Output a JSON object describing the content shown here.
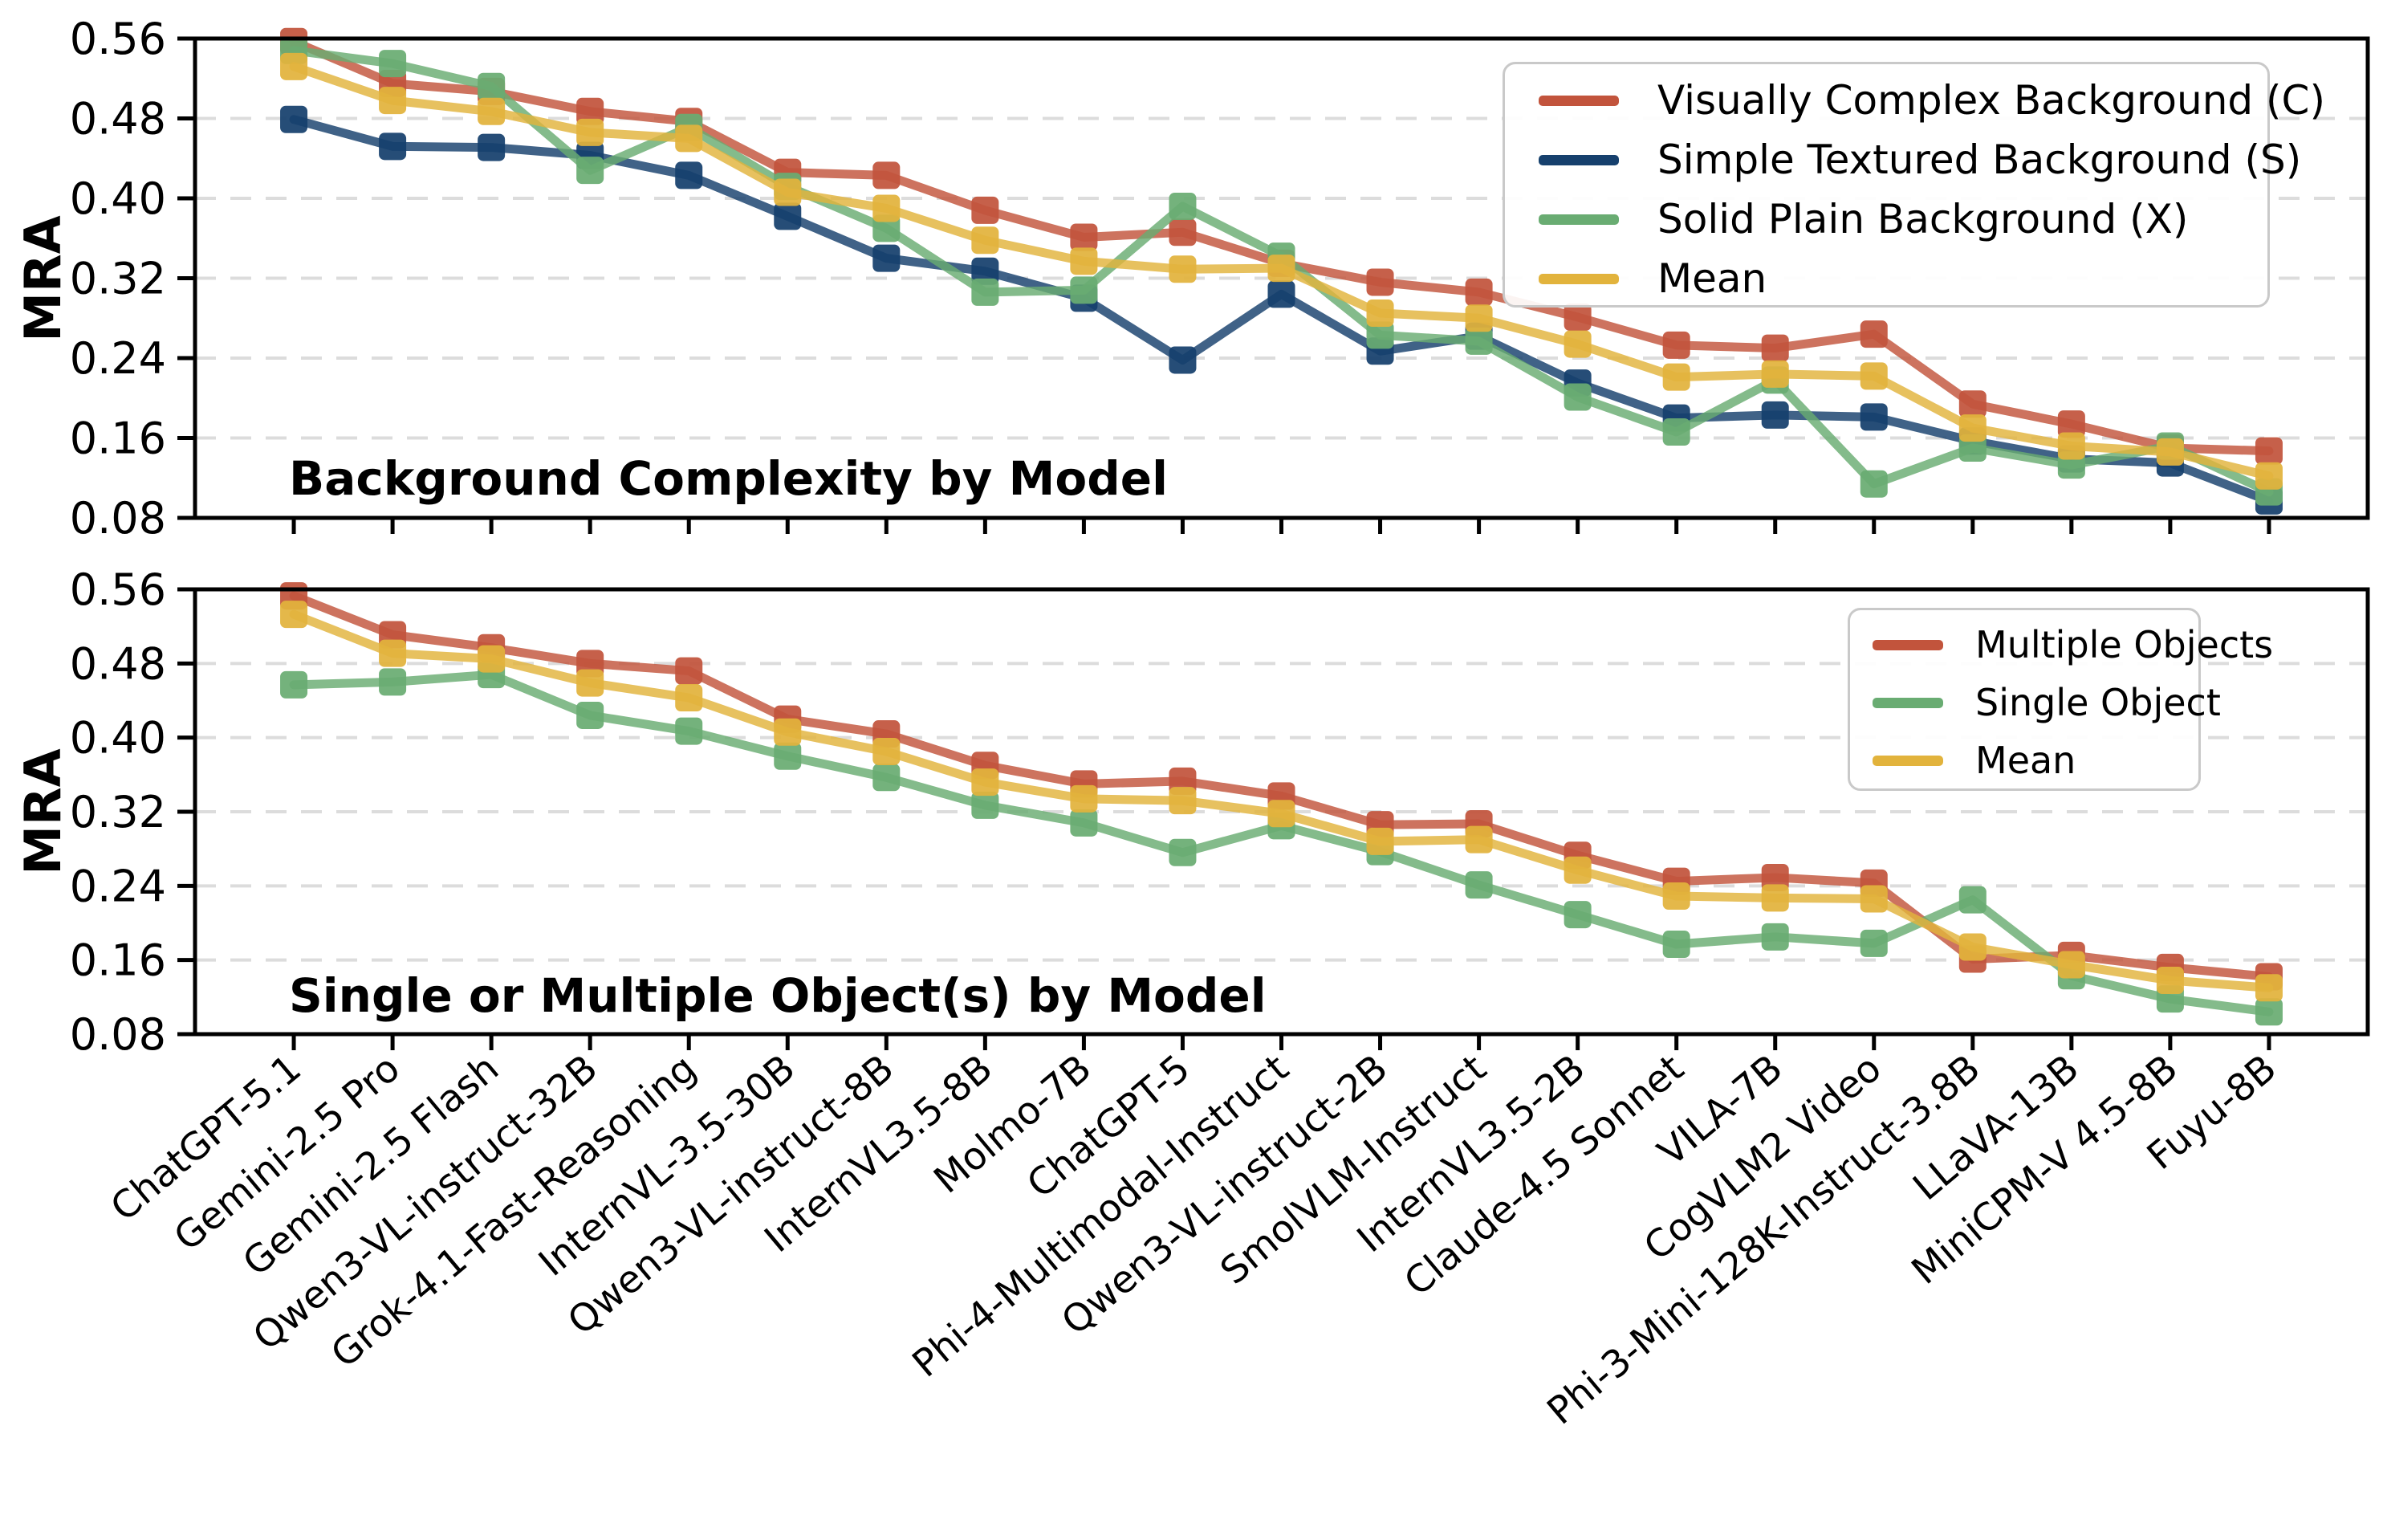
{
  "figure": {
    "background": "#ffffff",
    "text_color": "#000000",
    "grid_color": "#dcdcdc",
    "spine_color": "#000000"
  },
  "chart_data": [
    {
      "type": "line",
      "title": "Background Complexity by Model",
      "ylabel": "MRA",
      "xlabel": "",
      "ylim": [
        0.08,
        0.56
      ],
      "ytick_labels": [
        "0.56",
        "0.48",
        "0.40",
        "0.32",
        "0.24",
        "0.16",
        "0.08"
      ],
      "ytick_values": [
        0.56,
        0.48,
        0.4,
        0.32,
        0.24,
        0.16,
        0.08
      ],
      "grid": "horizontal-dashed",
      "marker": "square",
      "legend_position": "upper right",
      "show_x_tick_labels": false,
      "categories": [
        "ChatGPT-5.1",
        "Gemini-2.5 Pro",
        "Gemini-2.5 Flash",
        "Qwen3-VL-instruct-32B",
        "Grok-4.1-Fast-Reasoning",
        "InternVL-3.5-30B",
        "Qwen3-VL-instruct-8B",
        "InternVL3.5-8B",
        "Molmo-7B",
        "ChatGPT-5",
        "Phi-4-Multimodal-Instruct",
        "Qwen3-VL-instruct-2B",
        "SmolVLM-Instruct",
        "InternVL3.5-2B",
        "Claude-4.5 Sonnet",
        "VILA-7B",
        "CogVLM2 Video",
        "Phi-3-Mini-128K-Instruct-3.8B",
        "LLaVA-13B",
        "MiniCPM-V 4.5-8B",
        "Fuyu-8B"
      ],
      "series": [
        {
          "name": "Visually Complex Background (C)",
          "color": "#c2543c",
          "values": [
            0.557,
            0.515,
            0.507,
            0.487,
            0.477,
            0.426,
            0.423,
            0.388,
            0.361,
            0.366,
            0.335,
            0.316,
            0.306,
            0.281,
            0.253,
            0.25,
            0.264,
            0.194,
            0.174,
            0.15,
            0.147
          ]
        },
        {
          "name": "Simple Textured Background (S)",
          "color": "#16406d",
          "values": [
            0.479,
            0.452,
            0.451,
            0.443,
            0.423,
            0.382,
            0.34,
            0.327,
            0.3,
            0.238,
            0.304,
            0.247,
            0.262,
            0.215,
            0.18,
            0.183,
            0.181,
            0.157,
            0.139,
            0.135,
            0.097
          ]
        },
        {
          "name": "Solid Plain Background (X)",
          "color": "#69ac72",
          "values": [
            0.548,
            0.535,
            0.512,
            0.428,
            0.471,
            0.412,
            0.37,
            0.306,
            0.308,
            0.392,
            0.342,
            0.263,
            0.257,
            0.201,
            0.166,
            0.218,
            0.114,
            0.15,
            0.133,
            0.152,
            0.106
          ]
        },
        {
          "name": "Mean",
          "color": "#e2b33c",
          "values": [
            0.532,
            0.498,
            0.487,
            0.466,
            0.46,
            0.406,
            0.39,
            0.358,
            0.337,
            0.329,
            0.33,
            0.285,
            0.28,
            0.254,
            0.221,
            0.224,
            0.222,
            0.17,
            0.152,
            0.146,
            0.122
          ]
        }
      ]
    },
    {
      "type": "line",
      "title": "Single or Multiple Object(s) by Model",
      "ylabel": "MRA",
      "xlabel": "",
      "ylim": [
        0.08,
        0.56
      ],
      "ytick_labels": [
        "0.56",
        "0.48",
        "0.40",
        "0.32",
        "0.24",
        "0.16",
        "0.08"
      ],
      "ytick_values": [
        0.56,
        0.48,
        0.4,
        0.32,
        0.24,
        0.16,
        0.08
      ],
      "grid": "horizontal-dashed",
      "marker": "square",
      "legend_position": "upper right",
      "show_x_tick_labels": true,
      "categories": [
        "ChatGPT-5.1",
        "Gemini-2.5 Pro",
        "Gemini-2.5 Flash",
        "Qwen3-VL-instruct-32B",
        "Grok-4.1-Fast-Reasoning",
        "InternVL-3.5-30B",
        "Qwen3-VL-instruct-8B",
        "InternVL3.5-8B",
        "Molmo-7B",
        "ChatGPT-5",
        "Phi-4-Multimodal-Instruct",
        "Qwen3-VL-instruct-2B",
        "SmolVLM-Instruct",
        "InternVL3.5-2B",
        "Claude-4.5 Sonnet",
        "VILA-7B",
        "CogVLM2 Video",
        "Phi-3-Mini-128K-Instruct-3.8B",
        "LLaVA-13B",
        "MiniCPM-V 4.5-8B",
        "Fuyu-8B"
      ],
      "series": [
        {
          "name": "Multiple Objects",
          "color": "#c2543c",
          "values": [
            0.553,
            0.511,
            0.497,
            0.48,
            0.472,
            0.42,
            0.404,
            0.37,
            0.35,
            0.353,
            0.337,
            0.306,
            0.307,
            0.273,
            0.245,
            0.249,
            0.243,
            0.161,
            0.165,
            0.152,
            0.142
          ]
        },
        {
          "name": "Single Object",
          "color": "#69ac72",
          "values": [
            0.457,
            0.46,
            0.468,
            0.424,
            0.407,
            0.38,
            0.357,
            0.327,
            0.308,
            0.276,
            0.305,
            0.277,
            0.241,
            0.209,
            0.177,
            0.185,
            0.178,
            0.225,
            0.143,
            0.118,
            0.104
          ]
        },
        {
          "name": "Mean",
          "color": "#e2b33c",
          "values": [
            0.533,
            0.491,
            0.485,
            0.459,
            0.443,
            0.406,
            0.385,
            0.352,
            0.334,
            0.332,
            0.318,
            0.288,
            0.29,
            0.257,
            0.229,
            0.227,
            0.226,
            0.174,
            0.155,
            0.138,
            0.13
          ]
        }
      ]
    }
  ]
}
